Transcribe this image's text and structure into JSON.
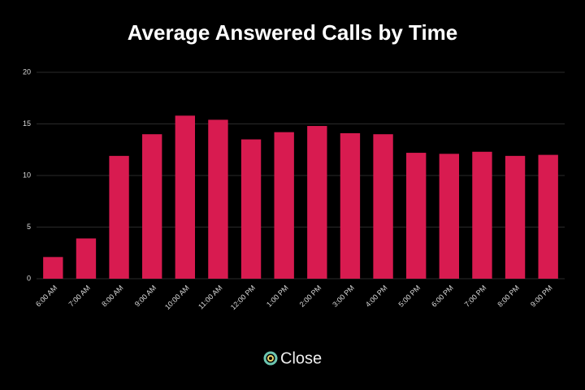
{
  "chart_data": {
    "type": "bar",
    "title": "Average Answered Calls by Time",
    "categories": [
      "6:00 AM",
      "7:00 AM",
      "8:00 AM",
      "9:00 AM",
      "10:00 AM",
      "11:00 AM",
      "12:00 PM",
      "1:00 PM",
      "2:00 PM",
      "3:00 PM",
      "4:00 PM",
      "5:00 PM",
      "6:00 PM",
      "7:00 PM",
      "8:00 PM",
      "9:00 PM"
    ],
    "values": [
      2.1,
      3.9,
      11.9,
      14.0,
      15.8,
      15.4,
      13.5,
      14.2,
      14.8,
      14.1,
      14.0,
      12.2,
      12.1,
      12.3,
      11.9,
      12.0
    ],
    "color": "#d81b50",
    "ylim": [
      0,
      20
    ],
    "yticks": [
      0,
      5,
      10,
      15,
      20
    ],
    "grid": true
  },
  "logo": "Close"
}
